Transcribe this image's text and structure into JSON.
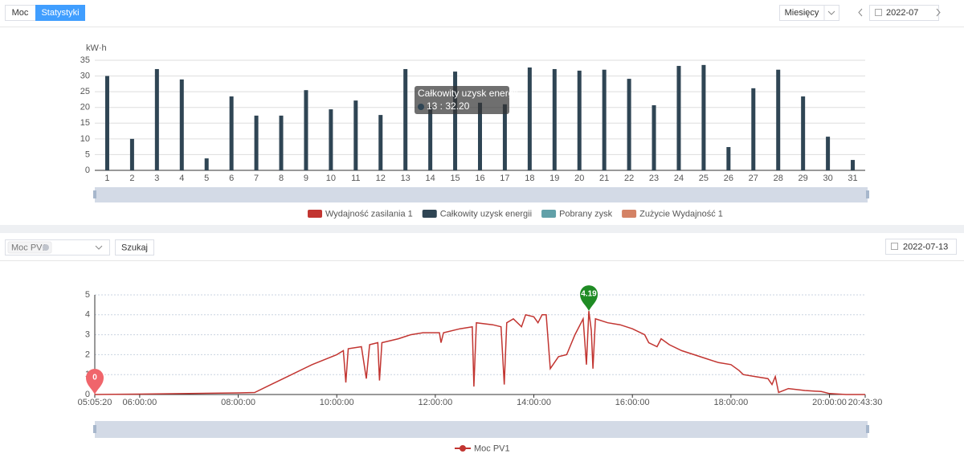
{
  "toolbar": {
    "tabs": [
      "Moc",
      "Statystyki"
    ],
    "period": "Miesięcy",
    "month": "2022-07"
  },
  "filter": {
    "device": "Moc PV1",
    "search": "Szukaj",
    "day": "2022-07-13"
  },
  "chart_data": [
    {
      "type": "bar",
      "y_label": "kW·h",
      "categories": [
        "1",
        "2",
        "3",
        "4",
        "5",
        "6",
        "7",
        "8",
        "9",
        "10",
        "11",
        "12",
        "13",
        "14",
        "15",
        "16",
        "17",
        "18",
        "19",
        "20",
        "21",
        "22",
        "23",
        "24",
        "25",
        "26",
        "27",
        "28",
        "29",
        "30",
        "31"
      ],
      "series": [
        {
          "name": "Całkowity uzysk energii",
          "color": "#2f4554",
          "values": [
            30,
            10,
            32.2,
            28.9,
            3.8,
            23.5,
            17.4,
            17.4,
            25.5,
            19.4,
            22.2,
            17.6,
            32.2,
            20,
            31.4,
            21.5,
            21,
            32.7,
            32.2,
            31.7,
            32,
            29.1,
            20.7,
            33.2,
            33.5,
            7.4,
            26.1,
            32,
            23.5,
            10.7,
            3.3
          ]
        }
      ],
      "legend": [
        {
          "name": "Wydajność zasilania 1",
          "color": "#c23531"
        },
        {
          "name": "Całkowity uzysk energii",
          "color": "#2f4554"
        },
        {
          "name": "Pobrany zysk",
          "color": "#61a0a8"
        },
        {
          "name": "Zużycie Wydajność 1",
          "color": "#d48265"
        }
      ],
      "tooltip": {
        "title": "Całkowity uzysk energii",
        "text": "13 : 32.20"
      },
      "ylim": [
        0,
        35
      ],
      "yticks": [
        0,
        5,
        10,
        15,
        20,
        25,
        30,
        35
      ],
      "grid": true
    },
    {
      "type": "line",
      "x": [
        "05:05:20",
        "06:00",
        "07:00",
        "08:00",
        "08:20",
        "08:40",
        "09:00",
        "09:30",
        "10:00",
        "10:08",
        "10:11",
        "10:14",
        "10:30",
        "10:36",
        "10:40",
        "10:50",
        "10:52",
        "10:55",
        "11:15",
        "11:30",
        "11:45",
        "12:05",
        "12:07",
        "12:10",
        "12:30",
        "12:45",
        "12:47",
        "12:50",
        "13:10",
        "13:20",
        "13:24",
        "13:27",
        "13:35",
        "13:45",
        "13:50",
        "14:00",
        "14:05",
        "14:10",
        "14:15",
        "14:20",
        "14:30",
        "14:40",
        "14:50",
        "15:00",
        "15:04",
        "15:07",
        "15:10",
        "15:12",
        "15:15",
        "15:30",
        "15:45",
        "16:00",
        "16:15",
        "16:20",
        "16:30",
        "16:35",
        "16:45",
        "17:00",
        "17:15",
        "17:30",
        "17:45",
        "18:00",
        "18:10",
        "18:15",
        "18:30",
        "18:45",
        "18:50",
        "18:54",
        "18:58",
        "19:10",
        "19:30",
        "19:50",
        "20:00",
        "20:20",
        "20:43:30"
      ],
      "series": [
        {
          "name": "Moc PV1",
          "color": "#c23531",
          "values": [
            0,
            0.02,
            0.05,
            0.08,
            0.1,
            0.5,
            0.9,
            1.5,
            2.0,
            2.2,
            0.6,
            2.3,
            2.4,
            0.8,
            2.5,
            2.6,
            0.7,
            2.6,
            2.8,
            3.0,
            3.1,
            3.1,
            2.6,
            3.1,
            3.3,
            3.4,
            0.4,
            3.6,
            3.5,
            3.4,
            0.5,
            3.6,
            3.8,
            3.4,
            4.0,
            3.9,
            3.6,
            4.0,
            4.0,
            1.3,
            1.9,
            2.0,
            3.0,
            3.8,
            1.5,
            4.19,
            3.2,
            1.3,
            3.8,
            3.6,
            3.5,
            3.3,
            3.0,
            2.6,
            2.4,
            2.8,
            2.5,
            2.2,
            2.0,
            1.8,
            1.6,
            1.5,
            1.2,
            1.0,
            0.9,
            0.8,
            0.5,
            0.9,
            0.1,
            0.3,
            0.2,
            0.15,
            0.05,
            0,
            0
          ]
        }
      ],
      "mark_points": [
        {
          "x": "15:07",
          "value": 4.19,
          "color": "#1f8b24"
        },
        {
          "x": "05:05:20",
          "value": 0,
          "color": "#f0656b"
        }
      ],
      "xlim": [
        "05:05:20",
        "20:43:30"
      ],
      "xticks": [
        "05:05:20",
        "06:00:00",
        "08:00:00",
        "10:00:00",
        "12:00:00",
        "14:00:00",
        "16:00:00",
        "18:00:00",
        "20:00:00",
        "20:43:30"
      ],
      "ylim": [
        0,
        5
      ],
      "yticks": [
        0,
        1,
        2,
        3,
        4,
        5
      ],
      "grid": true
    }
  ]
}
